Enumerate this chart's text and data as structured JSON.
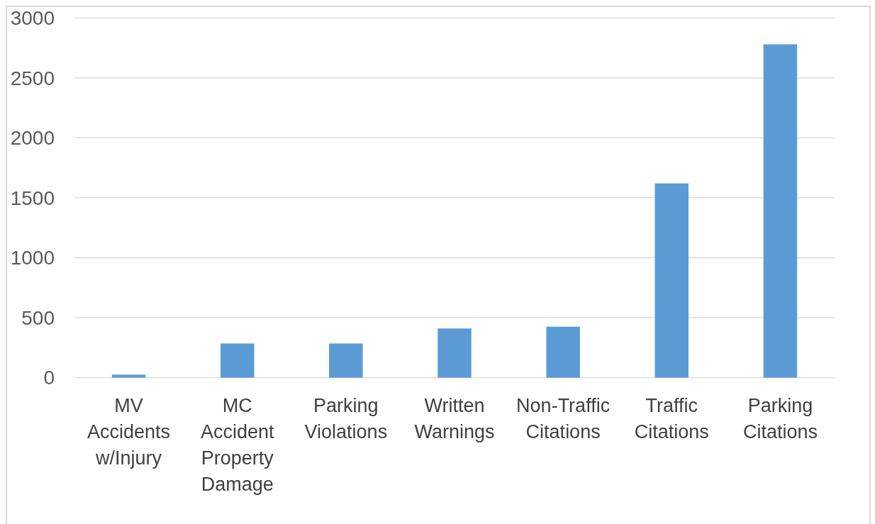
{
  "chart_data": {
    "type": "bar",
    "categories": [
      "MV Accidents w/Injury",
      "MC Accident Property Damage",
      "Parking Violations",
      "Written Warnings",
      "Non-Traffic Citations",
      "Traffic Citations",
      "Parking Citations"
    ],
    "values": [
      25,
      285,
      285,
      410,
      425,
      1620,
      2780
    ],
    "color": "#5b9bd5",
    "ylim": [
      0,
      3000
    ],
    "yticks": [
      0,
      500,
      1000,
      1500,
      2000,
      2500,
      3000
    ],
    "grid": "y"
  }
}
